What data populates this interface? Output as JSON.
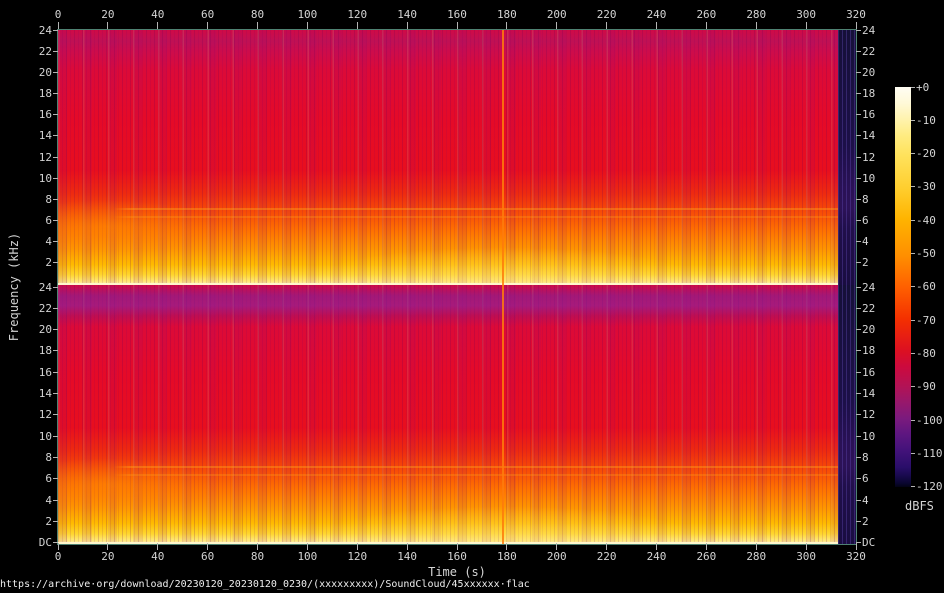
{
  "palette": {
    "background": "#000000",
    "axis_text": "#d4d4d4",
    "axis_line": "#4e8272",
    "tick_mark": "#b4b4b4",
    "url_text": "#efefef",
    "dc_line": "#fff6cc",
    "transient_line": "#ff7d0a",
    "spec_crimson": "#d00a46",
    "spec_red": "#e30b2a",
    "spec_orange": "#ff8800",
    "spec_yellow": "#ffd200",
    "purple_band": "#7c28a0",
    "silence_band": "#1b1048",
    "colorbar_top": "#fffdf4",
    "colorbar_bottom": "#030314"
  },
  "axes": {
    "time_ticks": [
      "0",
      "20",
      "40",
      "60",
      "80",
      "100",
      "120",
      "140",
      "160",
      "180",
      "200",
      "220",
      "240",
      "260",
      "280",
      "300",
      "320"
    ],
    "freq_ticks_channel1": [
      "24",
      "22",
      "20",
      "18",
      "16",
      "14",
      "12",
      "10",
      "8",
      "6",
      "4",
      "2"
    ],
    "freq_ticks_channel2": [
      "24",
      "22",
      "20",
      "18",
      "16",
      "14",
      "12",
      "10",
      "8",
      "6",
      "4",
      "2",
      "DC"
    ],
    "time_label": "Time (s)",
    "freq_label": "Frequency (kHz)"
  },
  "colorbar": {
    "ticks": [
      "+0",
      "-10",
      "-20",
      "-30",
      "-40",
      "-50",
      "-60",
      "-70",
      "-80",
      "-90",
      "-100",
      "-110",
      "-120"
    ],
    "unit": "dBFS"
  },
  "footer": {
    "url": "https://archive·org/download/20230120_20230120_0230/(xxxxxxxxx)/SoundCloud/45xxxxxx·flac"
  },
  "chart_data": {
    "type": "heatmap",
    "subtype": "audio-spectrogram",
    "channels": 2,
    "xlabel": "Time (s)",
    "ylabel": "Frequency (kHz)",
    "xlim": [
      0,
      320
    ],
    "x_tick_step": 20,
    "ylim": [
      0,
      24
    ],
    "y_tick_step": 2,
    "colorbar": {
      "label": "dBFS",
      "max": 0,
      "min": -120,
      "tick_step": 10
    },
    "features": [
      "two stacked spectrogram panels (stereo channels), each 24 kHz (top) down to DC (bottom)",
      "strong broadband energy below ~2 kHz (yellow to white), orange 2-8 kHz, red above 10 kHz",
      "bright white horizontal line at DC of both channels",
      "channel 2 (bottom) shows a darker purple band above ~21 kHz",
      "regular vertical beat columns roughly every 10 s across the whole recording",
      "narrow orange transient line at ~178 s spanning all frequencies",
      "final ~315-320 s nearly silent: dark indigo vertical band at right edge (~-100 dBFS)",
      "brighter orange patch 0-30 s around 5-8 kHz; brighter yellow patches 120-230 s below 4 kHz",
      "thin horizontal tone lines near 7 kHz starting around 27 s"
    ]
  }
}
